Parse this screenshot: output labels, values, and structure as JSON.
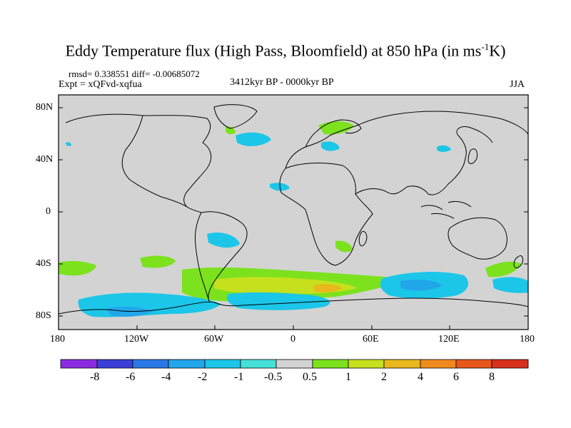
{
  "title": {
    "main": "Eddy Temperature flux (High Pass, Bloomfield) at 850 hPa (in ms",
    "superscript": "-1",
    "suffix": "K)"
  },
  "stats": {
    "rmsd_diff": "rmsd= 0.338551 diff= -0.00685072",
    "expt": "Expt = xQFvd-xqfua",
    "period": "3412kyr BP - 0000kyr BP",
    "season": "JJA"
  },
  "axes": {
    "lat_ticks": [
      "80N",
      "40N",
      "0",
      "40S",
      "80S"
    ],
    "lon_ticks": [
      "180",
      "120W",
      "60W",
      "0",
      "60E",
      "120E",
      "180"
    ]
  },
  "colorbar": {
    "labels": [
      "-8",
      "-6",
      "-4",
      "-2",
      "-1",
      "-0.5",
      "0.5",
      "1",
      "2",
      "4",
      "6",
      "8"
    ],
    "colors": [
      "#8a2be2",
      "#3a3fd8",
      "#2a78e6",
      "#22a6ea",
      "#1cc6e8",
      "#46e0d8",
      "#d3d3d3",
      "#7ce21e",
      "#c6e01e",
      "#e8b81c",
      "#f08a1c",
      "#e8561c",
      "#d8301c"
    ]
  },
  "map_colors": {
    "ocean_land_fill": "#d3d3d3",
    "coast": "#000000"
  }
}
